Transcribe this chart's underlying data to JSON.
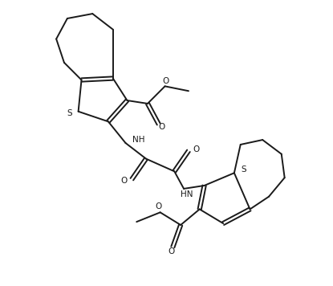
{
  "bg_color": "#ffffff",
  "line_color": "#1a1a1a",
  "line_width": 1.4,
  "fig_width": 4.15,
  "fig_height": 3.56,
  "dpi": 100,
  "xlim": [
    0,
    10
  ],
  "ylim": [
    0,
    9
  ]
}
